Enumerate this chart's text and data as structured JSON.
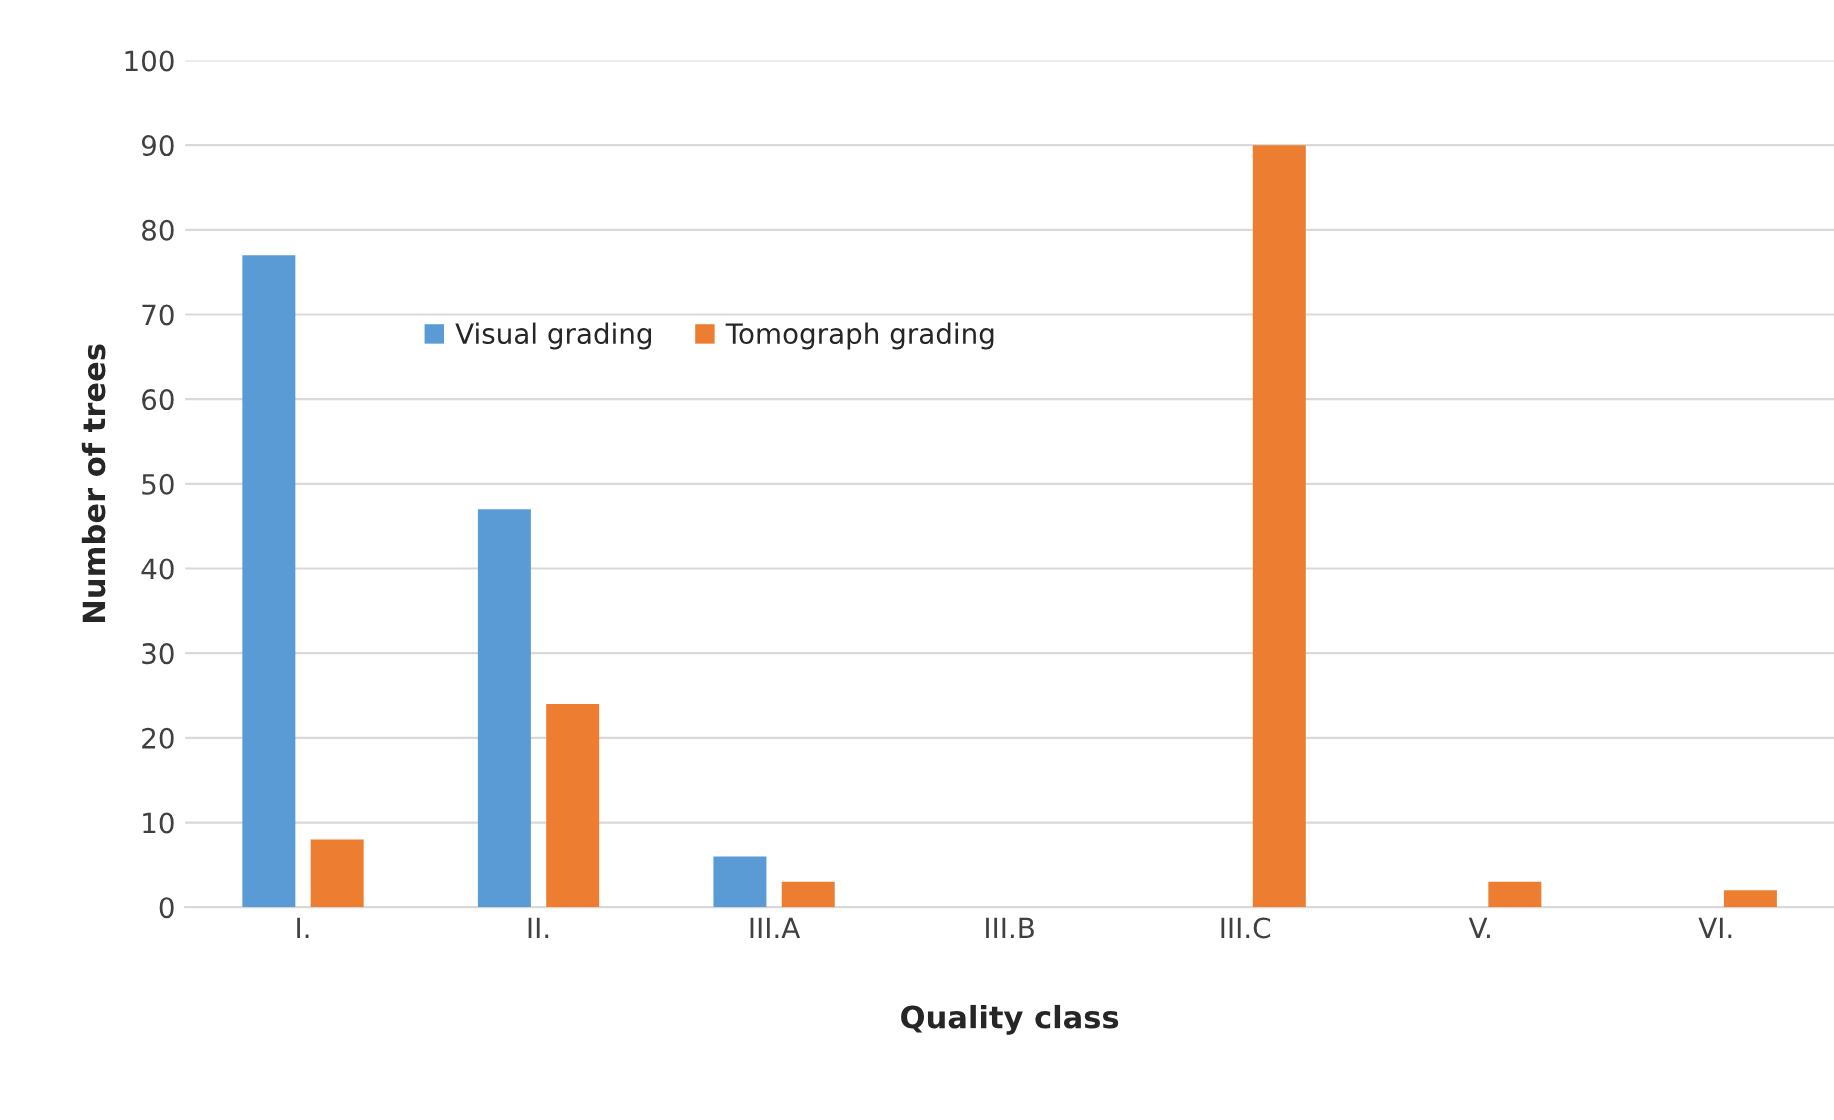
{
  "chart_data": {
    "type": "bar",
    "xlabel": "Quality class",
    "ylabel": "Number of trees",
    "categories": [
      "I.",
      "II.",
      "III.A",
      "III.B",
      "III.C",
      "V.",
      "VI."
    ],
    "series": [
      {
        "name": "Visual grading",
        "color": "#5b9bd5",
        "values": [
          77,
          47,
          6,
          null,
          null,
          null,
          null
        ]
      },
      {
        "name": "Tomograph grading",
        "color": "#ed7d31",
        "values": [
          8,
          24,
          3,
          null,
          90,
          3,
          2
        ]
      }
    ],
    "ylim": [
      0,
      100
    ],
    "yticks": [
      0,
      10,
      20,
      30,
      40,
      50,
      60,
      70,
      80,
      90,
      100
    ],
    "grid": "y",
    "legend": "top left"
  }
}
